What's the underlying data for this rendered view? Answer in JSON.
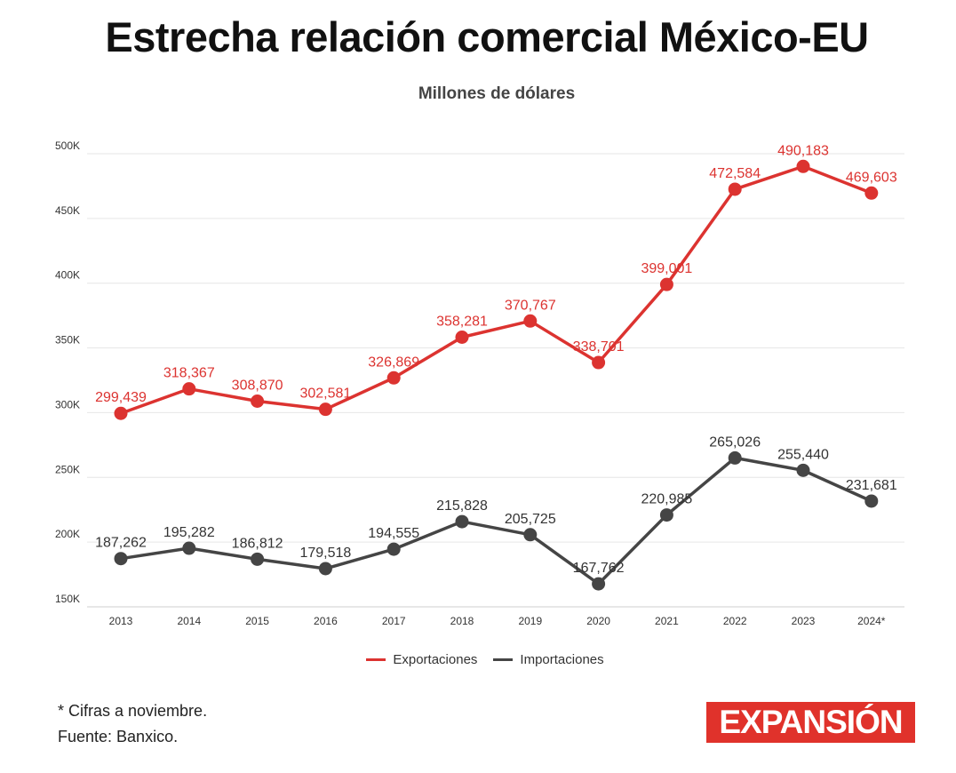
{
  "title": "Estrecha relación comercial México-EU",
  "subtitle": "Millones de dólares",
  "notes": {
    "line1": "* Cifras a noviembre.",
    "line2": "Fuente: Banxico."
  },
  "logo": {
    "text": "EXPANSIÓN",
    "color": "#e0322b"
  },
  "chart_data": {
    "type": "line",
    "x": [
      "2013",
      "2014",
      "2015",
      "2016",
      "2017",
      "2018",
      "2019",
      "2020",
      "2021",
      "2022",
      "2023",
      "2024*"
    ],
    "ylim": [
      150000,
      500000
    ],
    "yticks": [
      150000,
      200000,
      250000,
      300000,
      350000,
      400000,
      450000,
      500000
    ],
    "ytick_labels": [
      "150K",
      "200K",
      "250K",
      "300K",
      "350K",
      "400K",
      "450K",
      "500K"
    ],
    "grid": true,
    "legend_position": "bottom",
    "series": [
      {
        "name": "Exportaciones",
        "color": "#dc3330",
        "values": [
          299439,
          318367,
          308870,
          302581,
          326869,
          358281,
          370767,
          338701,
          399001,
          472584,
          490183,
          469603
        ],
        "labels": [
          "299,439",
          "318,367",
          "308,870",
          "302,581",
          "326,869",
          "358,281",
          "370,767",
          "338,701",
          "399,001",
          "472,584",
          "490,183",
          "469,603"
        ]
      },
      {
        "name": "Importaciones",
        "color": "#454545",
        "values": [
          187262,
          195282,
          186812,
          179518,
          194555,
          215828,
          205725,
          167762,
          220985,
          265026,
          255440,
          231681
        ],
        "labels": [
          "187,262",
          "195,282",
          "186,812",
          "179,518",
          "194,555",
          "215,828",
          "205,725",
          "167,762",
          "220,985",
          "265,026",
          "255,440",
          "231,681"
        ]
      }
    ]
  }
}
